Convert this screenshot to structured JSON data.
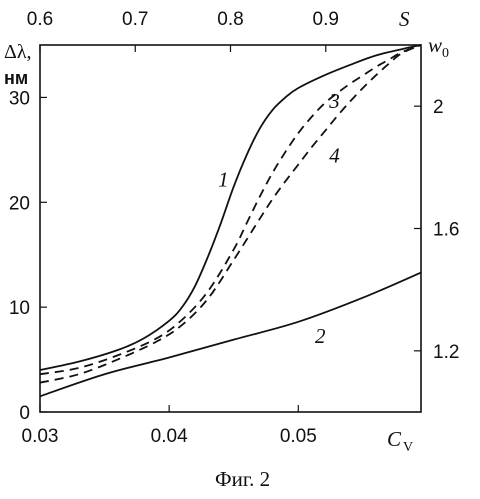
{
  "chart_data": {
    "type": "line",
    "caption": "Фиг. 2",
    "x_axis": {
      "label": "C",
      "label_subscript": "V",
      "range": [
        0.03,
        0.0595
      ],
      "ticks": [
        0.03,
        0.04,
        0.05
      ],
      "tick_labels": [
        "0.03",
        "0.04",
        "0.05"
      ]
    },
    "x_top_axis": {
      "label": "S",
      "range": [
        0.6,
        1.0
      ],
      "ticks": [
        0.6,
        0.7,
        0.8,
        0.9
      ],
      "tick_labels": [
        "0.6",
        "0.7",
        "0.8",
        "0.9"
      ]
    },
    "y_axis": {
      "label": "Δλ,",
      "unit": "нм",
      "range": [
        0,
        35
      ],
      "ticks": [
        0,
        10,
        20,
        30
      ],
      "tick_labels": [
        "0",
        "10",
        "20",
        "30"
      ]
    },
    "y_right_axis": {
      "label": "w",
      "label_subscript": "0",
      "range": [
        1.0,
        2.2
      ],
      "ticks": [
        1.2,
        1.6,
        2.0
      ],
      "tick_labels": [
        "1.2",
        "1.6",
        "2"
      ]
    },
    "series": [
      {
        "name": "1",
        "dash": "solid",
        "x": [
          0.03,
          0.033,
          0.036,
          0.038,
          0.04,
          0.041,
          0.042,
          0.043,
          0.044,
          0.045,
          0.046,
          0.047,
          0.048,
          0.049,
          0.05,
          0.052,
          0.054,
          0.056,
          0.058,
          0.0595
        ],
        "y": [
          4.0,
          4.8,
          5.9,
          7.0,
          8.7,
          10.0,
          12.0,
          14.8,
          18.0,
          21.5,
          24.5,
          27.0,
          28.8,
          30.0,
          30.9,
          32.1,
          33.1,
          34.0,
          34.6,
          35.0
        ]
      },
      {
        "name": "2",
        "dash": "solid",
        "x": [
          0.03,
          0.035,
          0.04,
          0.045,
          0.05,
          0.055,
          0.0595
        ],
        "y": [
          1.5,
          3.6,
          5.2,
          6.9,
          8.6,
          10.9,
          13.3
        ]
      },
      {
        "name": "3",
        "dash": "dashed",
        "x": [
          0.03,
          0.033,
          0.036,
          0.039,
          0.041,
          0.043,
          0.045,
          0.046,
          0.047,
          0.048,
          0.049,
          0.05,
          0.051,
          0.052,
          0.053,
          0.054,
          0.055,
          0.056,
          0.057,
          0.058,
          0.0595
        ],
        "y": [
          3.6,
          4.2,
          5.4,
          7.0,
          8.8,
          11.5,
          15.5,
          18.0,
          20.5,
          22.8,
          24.8,
          26.6,
          28.1,
          29.4,
          30.4,
          31.3,
          32.1,
          32.9,
          33.6,
          34.3,
          35.0
        ]
      },
      {
        "name": "4",
        "dash": "dashed",
        "x": [
          0.03,
          0.033,
          0.036,
          0.039,
          0.041,
          0.043,
          0.045,
          0.047,
          0.048,
          0.049,
          0.05,
          0.051,
          0.052,
          0.053,
          0.054,
          0.055,
          0.056,
          0.057,
          0.058,
          0.0595
        ],
        "y": [
          2.8,
          3.6,
          5.0,
          6.7,
          8.3,
          10.8,
          14.5,
          18.4,
          20.3,
          22.0,
          23.6,
          25.2,
          26.7,
          28.2,
          29.6,
          30.9,
          32.1,
          33.2,
          34.2,
          35.0
        ]
      }
    ],
    "curve_labels": [
      {
        "series": "1",
        "text": "1",
        "x": 0.0442,
        "y": 21.5
      },
      {
        "series": "2",
        "text": "2",
        "x": 0.0517,
        "y": 6.6
      },
      {
        "series": "3",
        "text": "3",
        "x": 0.0528,
        "y": 29.0
      },
      {
        "series": "4",
        "text": "4",
        "x": 0.0528,
        "y": 23.8
      }
    ],
    "grid": false,
    "legend": "none"
  }
}
